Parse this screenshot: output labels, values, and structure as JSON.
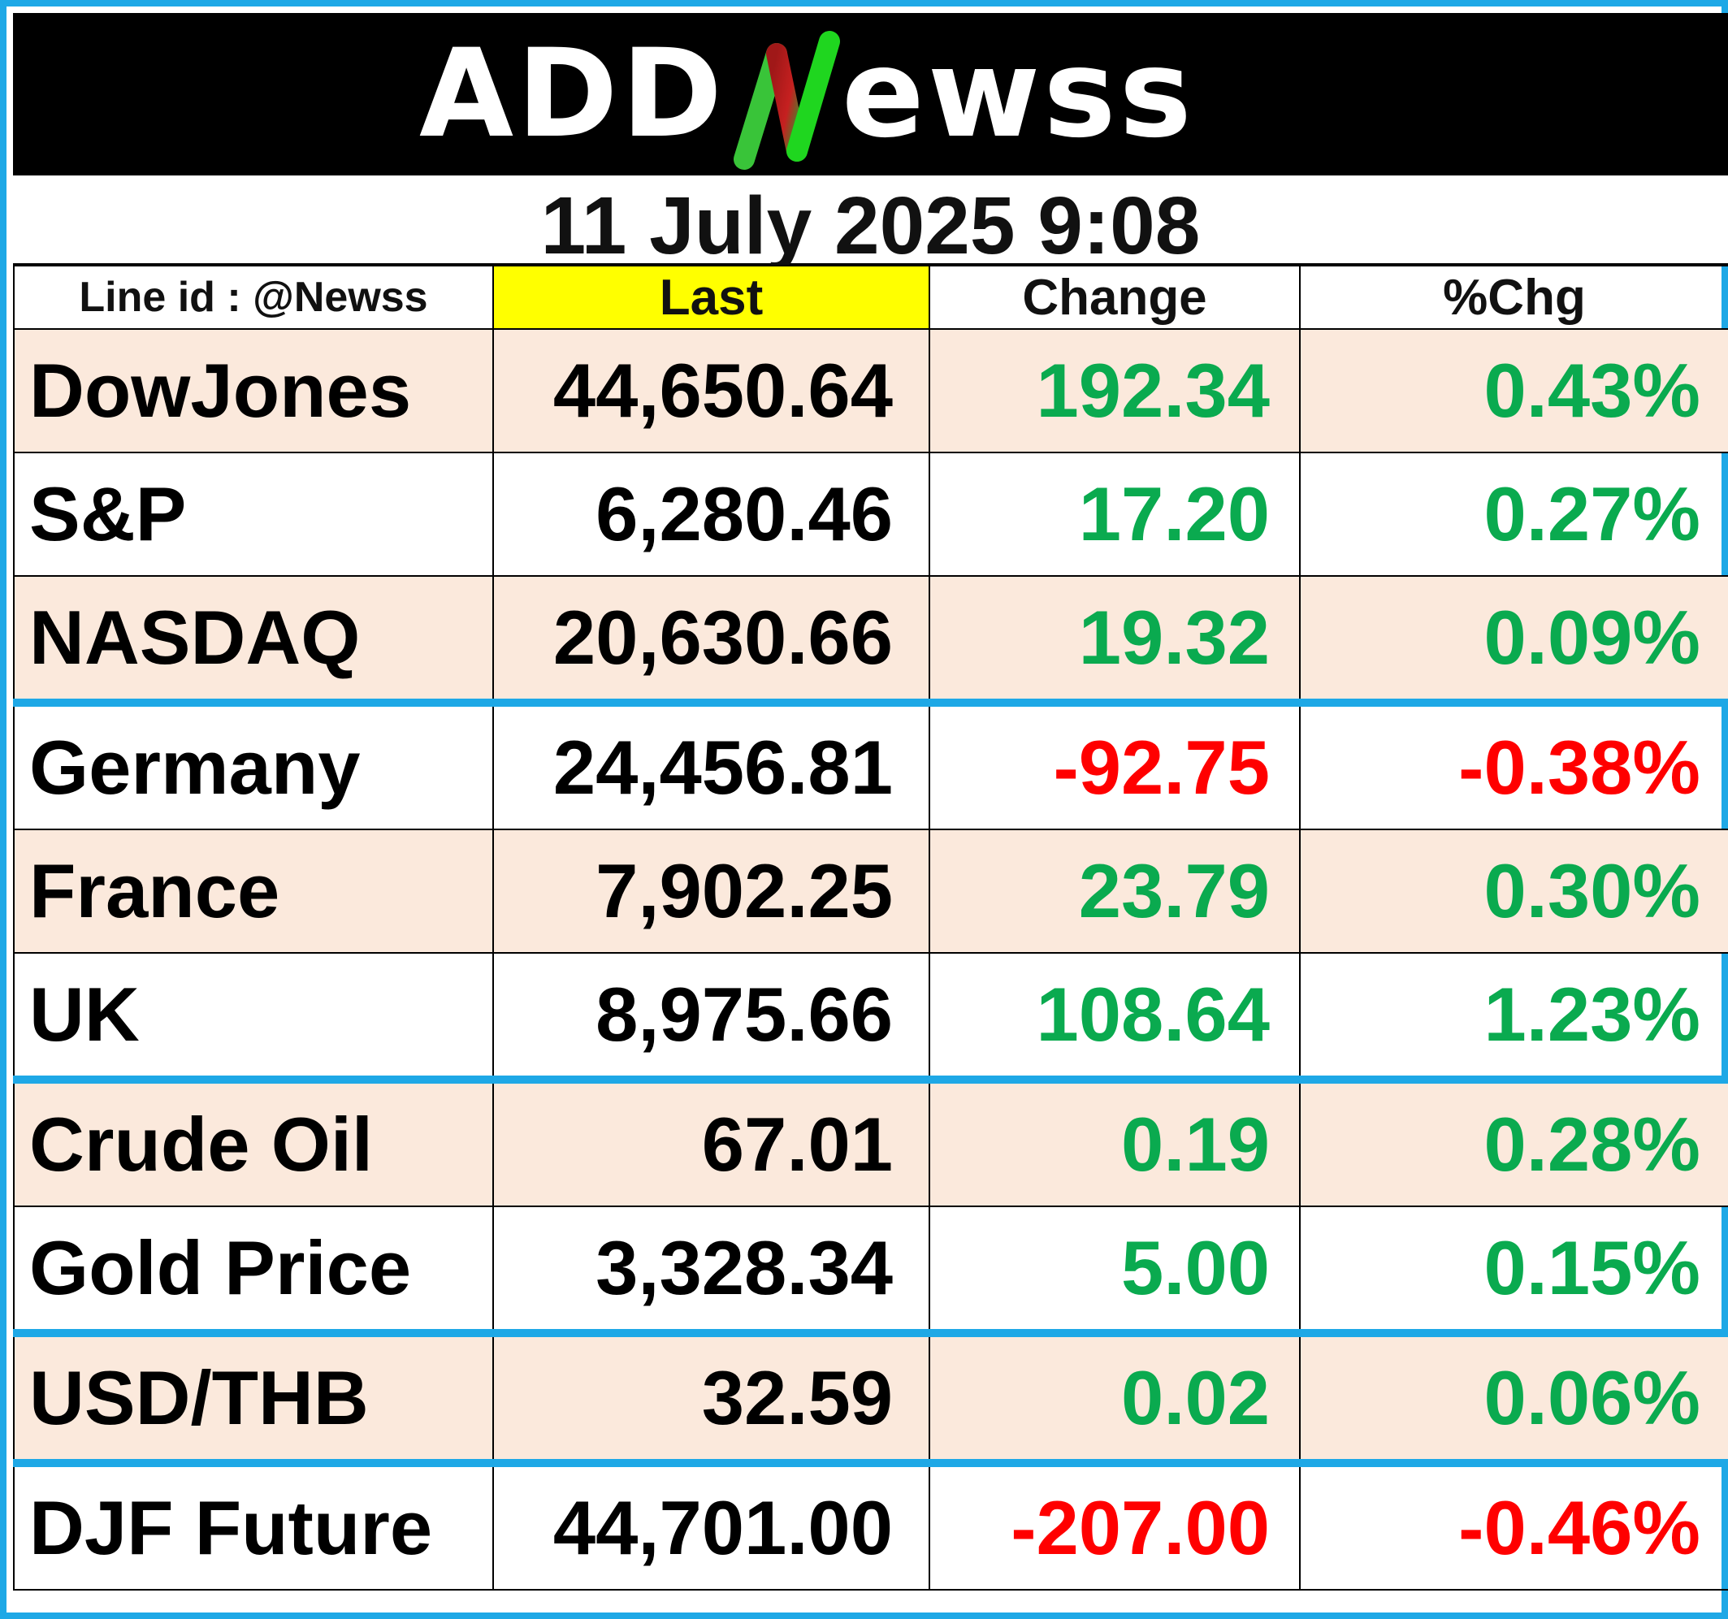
{
  "brand": {
    "left": "ADD",
    "right": "ewss"
  },
  "datetime": "11 July 2025  9:08",
  "headers": {
    "line_id": "Line id : @Newss",
    "last": "Last",
    "change": "Change",
    "pct": "%Chg"
  },
  "colors": {
    "positive": "#0aaa4f",
    "negative": "#ff0000",
    "row_shade": "#fbe9dc",
    "header_highlight": "#ffff00",
    "separator": "#1ea8e6"
  },
  "rows": [
    {
      "name": "DowJones",
      "last": "44,650.64",
      "change": "192.34",
      "pct": "0.43%",
      "direction": "up"
    },
    {
      "name": "S&P",
      "last": "6,280.46",
      "change": "17.20",
      "pct": "0.27%",
      "direction": "up"
    },
    {
      "name": "NASDAQ",
      "last": "20,630.66",
      "change": "19.32",
      "pct": "0.09%",
      "direction": "up"
    },
    {
      "name": "Germany",
      "last": "24,456.81",
      "change": "-92.75",
      "pct": "-0.38%",
      "direction": "down"
    },
    {
      "name": "France",
      "last": "7,902.25",
      "change": "23.79",
      "pct": "0.30%",
      "direction": "up"
    },
    {
      "name": "UK",
      "last": "8,975.66",
      "change": "108.64",
      "pct": "1.23%",
      "direction": "up"
    },
    {
      "name": "Crude Oil",
      "last": "67.01",
      "change": "0.19",
      "pct": "0.28%",
      "direction": "up"
    },
    {
      "name": "Gold Price",
      "last": "3,328.34",
      "change": "5.00",
      "pct": "0.15%",
      "direction": "up"
    },
    {
      "name": "USD/THB",
      "last": "32.59",
      "change": "0.02",
      "pct": "0.06%",
      "direction": "up"
    },
    {
      "name": "DJF Future",
      "last": "44,701.00",
      "change": "-207.00",
      "pct": "-0.46%",
      "direction": "down"
    }
  ]
}
